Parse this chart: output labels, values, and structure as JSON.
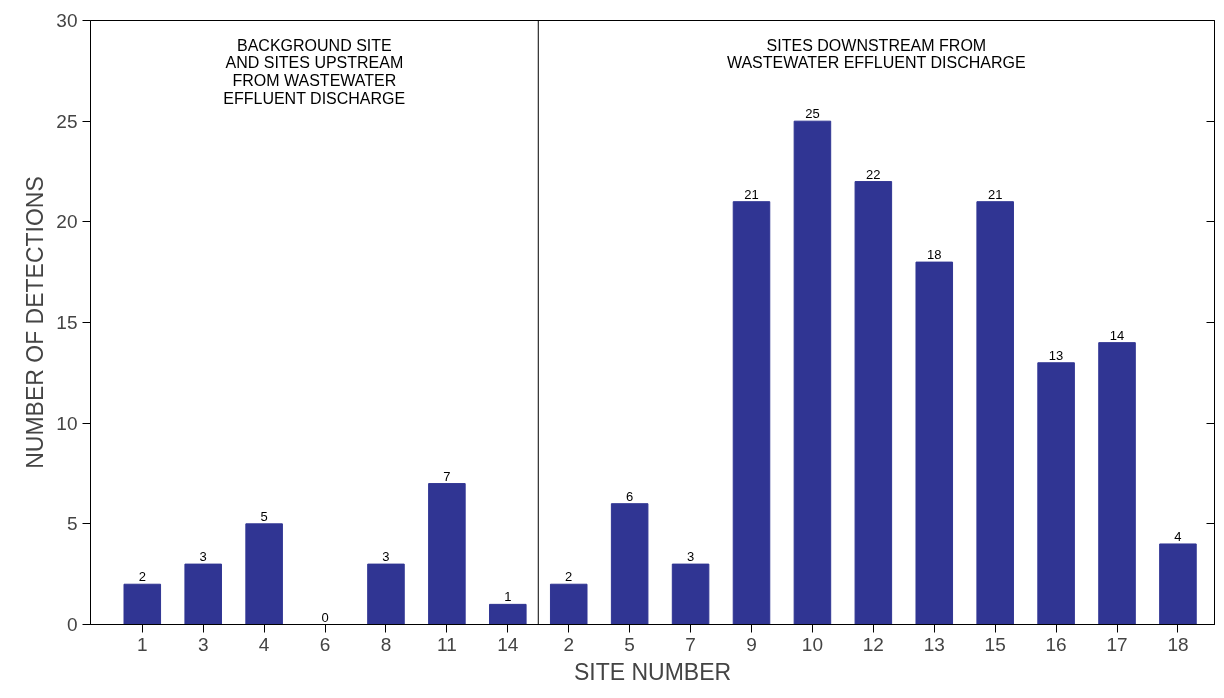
{
  "chart_data": {
    "type": "bar",
    "xlabel": "SITE NUMBER",
    "ylabel": "NUMBER OF DETECTIONS",
    "categories": [
      "1",
      "3",
      "4",
      "6",
      "8",
      "11",
      "14",
      "2",
      "5",
      "7",
      "9",
      "10",
      "12",
      "13",
      "15",
      "16",
      "17",
      "18"
    ],
    "values": [
      2,
      3,
      5,
      0,
      3,
      7,
      1,
      2,
      6,
      3,
      21,
      25,
      22,
      18,
      21,
      13,
      14,
      4
    ],
    "color": "#303593",
    "ylim": [
      0,
      30
    ],
    "yticks": [
      0,
      5,
      10,
      15,
      20,
      25,
      30
    ],
    "data_labels": true,
    "annotations": [
      "BACKGROUND SITE\nAND SITES UPSTREAM\nFROM WASTEWATER\nEFFLUENT DISCHARGE",
      "SITES DOWNSTREAM FROM\nWASTEWATER EFFLUENT DISCHARGE"
    ]
  }
}
